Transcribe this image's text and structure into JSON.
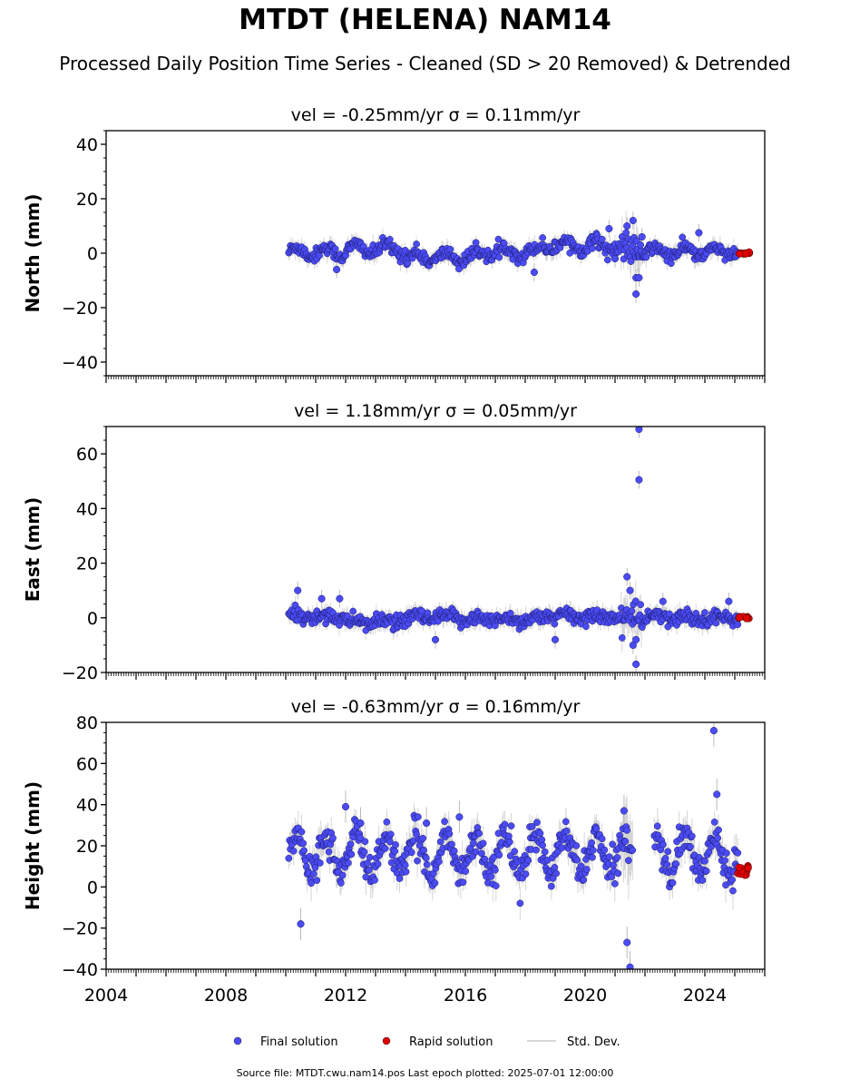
{
  "title": "MTDT (HELENA) NAM14",
  "subtitle": "Processed Daily Position Time Series - Cleaned (SD > 20 Removed) & Detrended",
  "source_note": "Source file: MTDT.cwu.nam14.pos  Last epoch plotted: 2025-07-01 12:00:00",
  "legend": [
    {
      "label": "Final solution",
      "color": "#4b4bf5",
      "symbol": "dot"
    },
    {
      "label": "Rapid solution",
      "color": "#e00000",
      "symbol": "dot"
    },
    {
      "label": "Std. Dev.",
      "color": "#cccccc",
      "symbol": "line"
    }
  ],
  "chart_data": [
    {
      "type": "scatter",
      "panel_title": "vel = -0.25mm/yr   σ = 0.11mm/yr",
      "ylabel": "North (mm)",
      "xlim": [
        2004.0,
        2026.0
      ],
      "ylim": [
        -45,
        45
      ],
      "yticks": [
        -40,
        -20,
        0,
        20,
        40
      ],
      "xticks": [
        2004,
        2008,
        2012,
        2016,
        2020,
        2024
      ],
      "x_range_final": [
        2010.1,
        2025.1
      ],
      "x_range_rapid": [
        2025.1,
        2025.5
      ],
      "series": [
        {
          "name": "Final solution",
          "color": "#4b4bf5",
          "amplitude": 1.8,
          "scatter": 1.2
        },
        {
          "name": "Rapid solution",
          "color": "#e00000"
        }
      ],
      "std_dev": {
        "typical": 2.5,
        "color": "#bbbbbb"
      },
      "segments": [
        {
          "x": [
            2010.1,
            2012.0
          ],
          "level": 0.5
        },
        {
          "x": [
            2012.0,
            2014.0
          ],
          "level": 1.5
        },
        {
          "x": [
            2014.0,
            2016.5
          ],
          "level": -1.5
        },
        {
          "x": [
            2016.5,
            2018.5
          ],
          "level": 0.5
        },
        {
          "x": [
            2018.5,
            2021.0
          ],
          "level": 3.0
        },
        {
          "x": [
            2021.0,
            2022.0
          ],
          "level": 1.0
        },
        {
          "x": [
            2022.0,
            2025.1
          ],
          "level": 0.5
        }
      ],
      "outliers": [
        {
          "x": 2011.7,
          "y": -6
        },
        {
          "x": 2018.3,
          "y": -7
        },
        {
          "x": 2020.8,
          "y": 9
        },
        {
          "x": 2021.0,
          "y": -2
        },
        {
          "x": 2021.4,
          "y": 10
        },
        {
          "x": 2021.6,
          "y": 12
        },
        {
          "x": 2021.7,
          "y": -9
        },
        {
          "x": 2021.7,
          "y": -15
        },
        {
          "x": 2021.8,
          "y": -9
        },
        {
          "x": 2021.9,
          "y": 6
        },
        {
          "x": 2023.8,
          "y": 7.5
        }
      ]
    },
    {
      "type": "scatter",
      "panel_title": "vel = 1.18mm/yr   σ = 0.05mm/yr",
      "ylabel": "East (mm)",
      "xlim": [
        2004.0,
        2026.0
      ],
      "ylim": [
        -20,
        70
      ],
      "yticks": [
        -20,
        0,
        20,
        40,
        60
      ],
      "xticks": [
        2004,
        2008,
        2012,
        2016,
        2020,
        2024
      ],
      "x_range_final": [
        2010.1,
        2025.1
      ],
      "x_range_rapid": [
        2025.1,
        2025.5
      ],
      "series": [
        {
          "name": "Final solution",
          "color": "#4b4bf5",
          "amplitude": 1.0,
          "scatter": 1.3
        },
        {
          "name": "Rapid solution",
          "color": "#e00000"
        }
      ],
      "std_dev": {
        "typical": 2.5,
        "color": "#bbbbbb"
      },
      "segments": [
        {
          "x": [
            2010.1,
            2012.0
          ],
          "level": 0.5
        },
        {
          "x": [
            2012.0,
            2014.0
          ],
          "level": -1.5
        },
        {
          "x": [
            2014.0,
            2016.0
          ],
          "level": 0.0
        },
        {
          "x": [
            2016.0,
            2018.5
          ],
          "level": -0.5
        },
        {
          "x": [
            2018.5,
            2021.0
          ],
          "level": 0.5
        },
        {
          "x": [
            2021.0,
            2022.0
          ],
          "level": 0.0
        },
        {
          "x": [
            2022.0,
            2025.1
          ],
          "level": 0.0
        }
      ],
      "outliers": [
        {
          "x": 2010.4,
          "y": 10
        },
        {
          "x": 2011.2,
          "y": 7
        },
        {
          "x": 2011.8,
          "y": 7
        },
        {
          "x": 2015.0,
          "y": -8
        },
        {
          "x": 2019.0,
          "y": -8
        },
        {
          "x": 2021.4,
          "y": 15
        },
        {
          "x": 2021.5,
          "y": 10
        },
        {
          "x": 2021.6,
          "y": -10
        },
        {
          "x": 2021.7,
          "y": -17
        },
        {
          "x": 2021.7,
          "y": -8
        },
        {
          "x": 2021.8,
          "y": 69
        },
        {
          "x": 2021.8,
          "y": 50.5
        },
        {
          "x": 2022.6,
          "y": 6
        },
        {
          "x": 2024.8,
          "y": 6
        }
      ]
    },
    {
      "type": "scatter",
      "panel_title": "vel = -0.63mm/yr   σ = 0.16mm/yr",
      "ylabel": "Height (mm)",
      "xlim": [
        2004.0,
        2026.0
      ],
      "ylim": [
        -40,
        80
      ],
      "yticks": [
        -40,
        -20,
        0,
        20,
        40,
        60,
        80
      ],
      "xticks": [
        2004,
        2008,
        2012,
        2016,
        2020,
        2024
      ],
      "x_range_final": [
        2010.1,
        2025.1
      ],
      "x_range_rapid": [
        2025.1,
        2025.5
      ],
      "gap": [
        2021.6,
        2022.3
      ],
      "series": [
        {
          "name": "Final solution",
          "color": "#4b4bf5",
          "amplitude": 9.0,
          "scatter": 4.0,
          "mean": 8
        },
        {
          "name": "Rapid solution",
          "color": "#e00000"
        }
      ],
      "std_dev": {
        "typical": 6,
        "color": "#bbbbbb"
      },
      "segments": [
        {
          "x": [
            2010.1,
            2025.1
          ],
          "level": 8
        }
      ],
      "outliers": [
        {
          "x": 2010.5,
          "y": -18
        },
        {
          "x": 2012.0,
          "y": 39
        },
        {
          "x": 2012.5,
          "y": 31
        },
        {
          "x": 2014.7,
          "y": 31
        },
        {
          "x": 2015.8,
          "y": 34
        },
        {
          "x": 2021.3,
          "y": 37
        },
        {
          "x": 2021.4,
          "y": -27
        },
        {
          "x": 2021.5,
          "y": -39
        },
        {
          "x": 2024.3,
          "y": 76
        },
        {
          "x": 2024.4,
          "y": 45
        }
      ]
    }
  ]
}
